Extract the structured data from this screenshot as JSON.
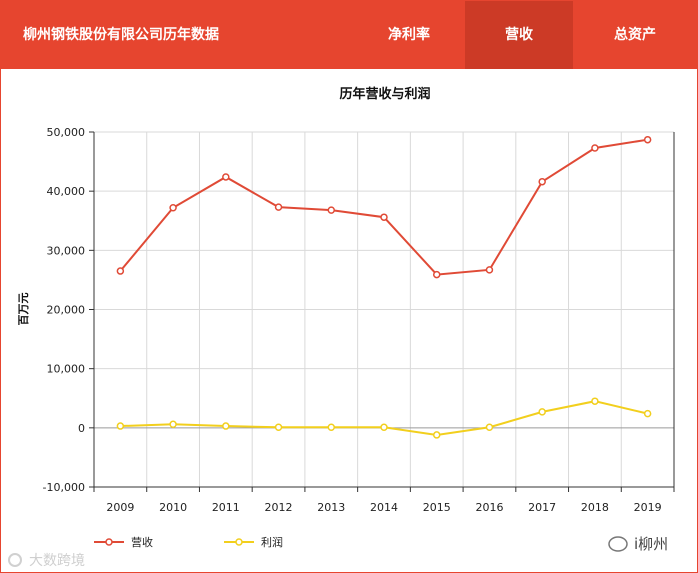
{
  "header": {
    "brand": "柳州钢铁股份有限公司历年数据",
    "tabs": [
      {
        "label": "净利率",
        "active": false
      },
      {
        "label": "营收",
        "active": true
      },
      {
        "label": "总资产",
        "active": false
      }
    ]
  },
  "colors": {
    "header": "#e6452f",
    "active_tab": "#cc3a26",
    "revenue": "#e04a36",
    "profit": "#f2cf1d"
  },
  "chart_data": {
    "type": "line",
    "title": "历年营收与利润",
    "ylabel": "百万元",
    "xlabel": "",
    "ylim": [
      -10000,
      50000
    ],
    "yticks": [
      -10000,
      0,
      10000,
      20000,
      30000,
      40000,
      50000
    ],
    "ytick_labels": [
      "-10,000",
      "0",
      "10,000",
      "20,000",
      "30,000",
      "40,000",
      "50,000"
    ],
    "categories": [
      "2009",
      "2010",
      "2011",
      "2012",
      "2013",
      "2014",
      "2015",
      "2016",
      "2017",
      "2018",
      "2019"
    ],
    "grid": true,
    "legend_position": "bottom-left",
    "series": [
      {
        "name": "营收",
        "color": "#e04a36",
        "values": [
          26500,
          37200,
          42400,
          37300,
          36800,
          35600,
          25900,
          26700,
          41600,
          47300,
          48700
        ]
      },
      {
        "name": "利润",
        "color": "#f2cf1d",
        "values": [
          300,
          600,
          300,
          100,
          100,
          100,
          -1200,
          100,
          2700,
          4500,
          2400
        ]
      }
    ]
  },
  "watermarks": {
    "left": "大数跨境",
    "right": "i柳州"
  }
}
